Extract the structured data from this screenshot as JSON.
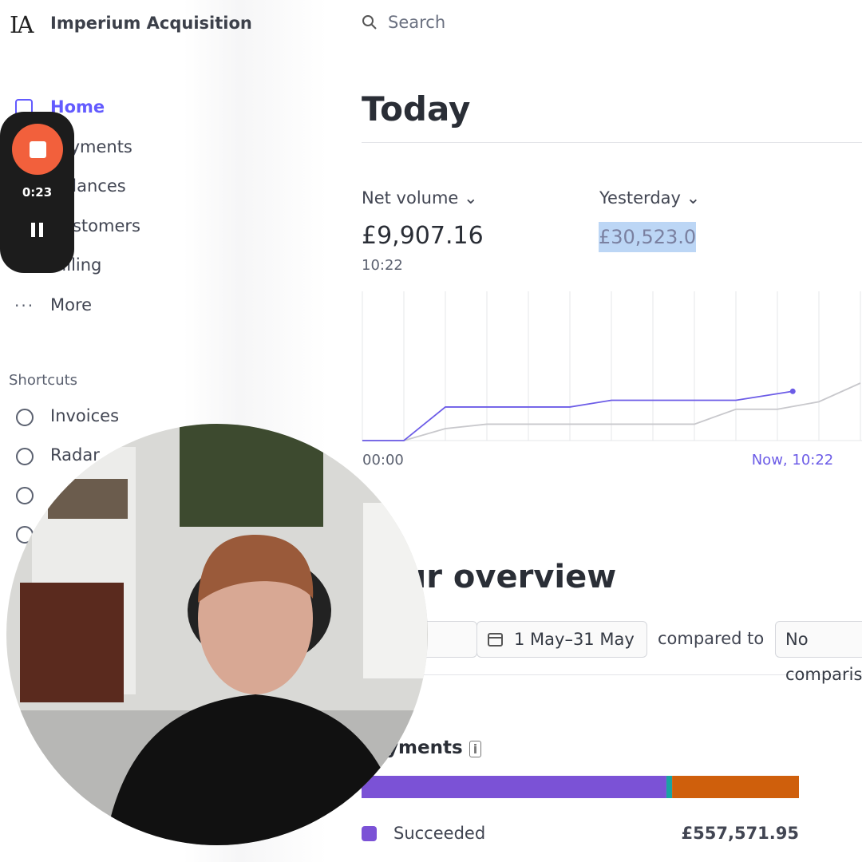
{
  "brand": {
    "logo": "IA",
    "name": "Imperium Acquisition"
  },
  "search": {
    "placeholder": "Search"
  },
  "nav": [
    "Home",
    "Payments",
    "Balances",
    "Customers",
    "Billing",
    "More"
  ],
  "shortcuts": {
    "title": "Shortcuts",
    "items": [
      "Invoices",
      "Radar"
    ]
  },
  "recorder": {
    "time": "0:23"
  },
  "today": {
    "title": "Today",
    "net_volume": {
      "label": "Net volume",
      "value": "£9,907.16",
      "time": "10:22"
    },
    "yesterday": {
      "label": "Yesterday",
      "value": "£30,523.0"
    },
    "chart": {
      "type": "line",
      "xlim": [
        0,
        12
      ],
      "ylim": [
        0,
        100
      ],
      "xticks": [
        {
          "value": 0,
          "label": "00:00"
        },
        1,
        2,
        3,
        4,
        5,
        6,
        7,
        8,
        9,
        10,
        11,
        12
      ],
      "now_label": {
        "value": 10.37,
        "label": "Now, 10:22"
      },
      "series": [
        {
          "color": "#c8c8cc",
          "x": [
            0,
            1,
            2,
            3,
            8,
            9,
            10,
            11,
            12
          ],
          "values": [
            0,
            0,
            8,
            11,
            11,
            21,
            21,
            26,
            38.5
          ]
        },
        {
          "color": "#6c5ce7",
          "x": [
            0,
            1,
            2,
            5,
            6,
            9,
            10.37
          ],
          "values": [
            0,
            0,
            22.5,
            22.5,
            27,
            27,
            33
          ]
        }
      ]
    }
  },
  "overview": {
    "title": "Your overview",
    "date_range": "1 May–31 May",
    "compared_to": "compared to",
    "comparison": "No comparison"
  },
  "payments": {
    "title": "Payments",
    "bar": [
      {
        "color": "#7b52d6",
        "value": 69.7
      },
      {
        "color": "#1aa3a3",
        "value": 1.3
      },
      {
        "color": "#cf5f0c",
        "value": 29
      }
    ],
    "legend": {
      "label": "Succeeded",
      "amount": "£557,571.95",
      "color": "#7b52d6"
    }
  }
}
